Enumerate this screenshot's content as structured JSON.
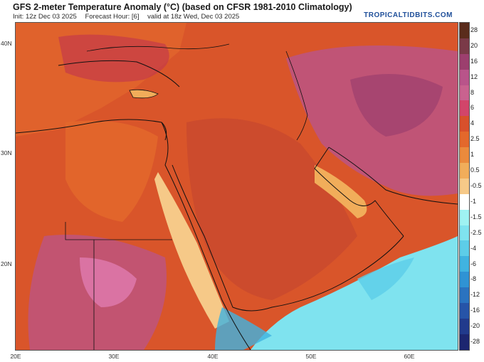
{
  "header": {
    "title": "GFS 2-meter Temperature Anomaly (°C) (based on CFSR 1981-2010 Climatology)",
    "init": "Init: 12z Dec 03 2025",
    "forecast_hour": "Forecast Hour: [6]",
    "valid": "valid at 18z Wed, Dec 03 2025",
    "brand": "TROPICALTIDBITS.COM"
  },
  "axes": {
    "lat_labels": [
      "40N",
      "30N",
      "20N"
    ],
    "lon_labels": [
      "20E",
      "30E",
      "40E",
      "50E",
      "60E"
    ]
  },
  "colorbar": {
    "labels": [
      "28",
      "20",
      "16",
      "12",
      "8",
      "6",
      "4",
      "2.5",
      "1",
      "0.5",
      "-0.5",
      "-1",
      "-1.5",
      "-2.5",
      "-4",
      "-6",
      "-8",
      "-12",
      "-16",
      "-20",
      "-28"
    ],
    "colors": [
      "#5a2c1c",
      "#7a3a48",
      "#9c3f6e",
      "#b9548a",
      "#c9628f",
      "#d2456a",
      "#d8502c",
      "#e3682c",
      "#eb8a3c",
      "#f1ad5a",
      "#f6c988",
      "#ffffff",
      "#9ff2f2",
      "#7fe3ef",
      "#5dcde8",
      "#40b3e0",
      "#2f93d4",
      "#2a73c0",
      "#2654a8",
      "#213a8c",
      "#1c2670"
    ]
  },
  "map": {
    "colors": {
      "anomaly_warm": "#d9552a",
      "anomaly_very_warm": "#c43a48",
      "anomaly_hot": "#b9548a",
      "anomaly_mild": "#eb8a3c",
      "anomaly_near_zero": "#f6c988",
      "anomaly_cool": "#7fe3ef",
      "anomaly_cold": "#40b3e0",
      "coastline": "#111111"
    }
  }
}
